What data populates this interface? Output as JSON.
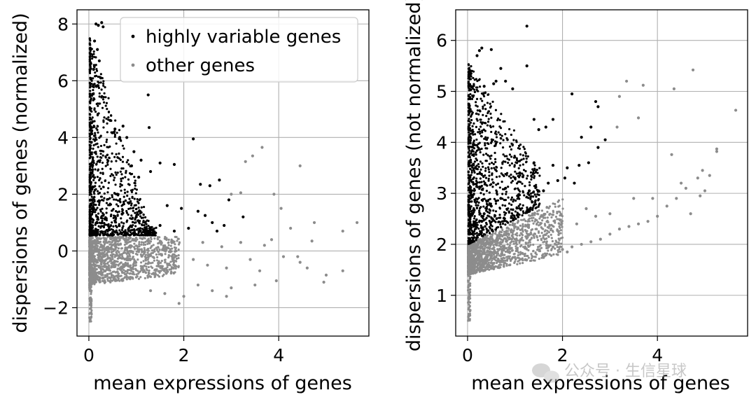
{
  "chart_data": [
    {
      "type": "scatter",
      "title": "",
      "xlabel": "mean expressions of genes",
      "ylabel": "dispersions of genes (normalized)",
      "xlim": [
        -0.25,
        5.9
      ],
      "ylim": [
        -3.0,
        8.5
      ],
      "xticks": [
        0,
        2,
        4
      ],
      "yticks": [
        -2,
        0,
        2,
        4,
        6,
        8
      ],
      "grid": true,
      "legend": {
        "placement": "top-right",
        "entries": [
          "highly variable genes",
          "other genes"
        ]
      },
      "series": [
        {
          "name": "highly variable genes",
          "color": "#000000",
          "points": [
            [
              0.15,
              8.0
            ],
            [
              0.2,
              7.95
            ],
            [
              0.27,
              8.05
            ],
            [
              0.3,
              7.9
            ],
            [
              0.12,
              7.4
            ],
            [
              0.18,
              7.1
            ],
            [
              0.22,
              6.7
            ],
            [
              0.1,
              6.4
            ],
            [
              0.25,
              6.1
            ],
            [
              0.16,
              5.8
            ],
            [
              1.25,
              5.5
            ],
            [
              0.45,
              4.6
            ],
            [
              1.27,
              4.35
            ],
            [
              0.72,
              4.4
            ],
            [
              0.55,
              4.3
            ],
            [
              0.65,
              4.0
            ],
            [
              0.8,
              4.0
            ],
            [
              2.2,
              3.95
            ],
            [
              0.95,
              3.5
            ],
            [
              1.1,
              3.2
            ],
            [
              1.5,
              3.1
            ],
            [
              1.8,
              3.05
            ],
            [
              0.9,
              3.0
            ],
            [
              1.3,
              2.8
            ],
            [
              1.05,
              2.6
            ],
            [
              2.35,
              2.35
            ],
            [
              2.55,
              2.3
            ],
            [
              2.75,
              2.5
            ],
            [
              2.95,
              1.8
            ],
            [
              1.65,
              1.6
            ],
            [
              1.95,
              1.5
            ],
            [
              2.3,
              1.4
            ],
            [
              2.45,
              1.25
            ],
            [
              2.85,
              0.9
            ],
            [
              2.6,
              1.0
            ],
            [
              2.1,
              0.8
            ],
            [
              1.8,
              0.7
            ],
            [
              1.5,
              0.9
            ],
            [
              1.2,
              0.8
            ],
            [
              1.35,
              0.6
            ],
            [
              3.25,
              1.2
            ],
            [
              2.7,
              0.7
            ],
            [
              1.0,
              1.2
            ],
            [
              0.6,
              2.0
            ],
            [
              0.7,
              1.3
            ],
            [
              0.85,
              1.7
            ]
          ]
        },
        {
          "name": "other genes",
          "color": "#8c8c8c",
          "points": [
            [
              3.65,
              3.65
            ],
            [
              3.45,
              3.35
            ],
            [
              3.3,
              3.15
            ],
            [
              4.45,
              3.0
            ],
            [
              3.0,
              2.0
            ],
            [
              3.2,
              2.05
            ],
            [
              3.9,
              2.0
            ],
            [
              4.05,
              1.5
            ],
            [
              4.25,
              0.8
            ],
            [
              3.85,
              0.4
            ],
            [
              4.75,
              1.0
            ],
            [
              4.7,
              0.35
            ],
            [
              5.35,
              0.7
            ],
            [
              5.65,
              1.0
            ],
            [
              4.1,
              -0.2
            ],
            [
              4.45,
              -0.4
            ],
            [
              4.6,
              -0.6
            ],
            [
              5.0,
              -0.85
            ],
            [
              5.35,
              -0.7
            ],
            [
              4.95,
              -1.1
            ],
            [
              3.95,
              -1.05
            ],
            [
              3.5,
              -1.2
            ],
            [
              3.0,
              -1.3
            ],
            [
              2.9,
              -1.6
            ],
            [
              2.6,
              -1.4
            ],
            [
              2.3,
              -1.2
            ],
            [
              2.0,
              -1.6
            ],
            [
              1.9,
              -1.85
            ],
            [
              1.6,
              -1.5
            ],
            [
              1.3,
              -1.4
            ],
            [
              4.4,
              -0.2
            ],
            [
              3.7,
              0.2
            ],
            [
              3.2,
              0.3
            ],
            [
              2.8,
              0.15
            ],
            [
              2.4,
              0.3
            ],
            [
              2.2,
              -0.3
            ],
            [
              2.5,
              -0.5
            ],
            [
              2.9,
              -0.6
            ],
            [
              3.4,
              -0.3
            ],
            [
              3.6,
              -0.7
            ]
          ]
        }
      ]
    },
    {
      "type": "scatter",
      "title": "",
      "xlabel": "mean expressions of genes",
      "ylabel": "dispersions of genes (not normalized)",
      "xlim": [
        -0.25,
        5.9
      ],
      "ylim": [
        0.2,
        6.6
      ],
      "xticks": [
        0,
        2,
        4
      ],
      "yticks": [
        1,
        2,
        3,
        4,
        5,
        6
      ],
      "grid": true,
      "series": [
        {
          "name": "highly variable genes",
          "color": "#000000",
          "points": [
            [
              1.25,
              6.28
            ],
            [
              0.25,
              5.8
            ],
            [
              0.3,
              5.85
            ],
            [
              0.5,
              5.82
            ],
            [
              0.2,
              5.7
            ],
            [
              1.25,
              5.5
            ],
            [
              0.7,
              5.45
            ],
            [
              0.8,
              5.2
            ],
            [
              0.55,
              5.15
            ],
            [
              0.6,
              5.2
            ],
            [
              0.95,
              5.05
            ],
            [
              0.35,
              5.1
            ],
            [
              2.2,
              4.95
            ],
            [
              2.7,
              4.8
            ],
            [
              2.75,
              4.7
            ],
            [
              1.8,
              4.45
            ],
            [
              1.4,
              4.45
            ],
            [
              1.65,
              4.3
            ],
            [
              2.6,
              4.3
            ],
            [
              1.5,
              4.25
            ],
            [
              2.4,
              4.1
            ],
            [
              2.9,
              4.05
            ],
            [
              2.75,
              3.9
            ],
            [
              2.1,
              3.5
            ],
            [
              2.35,
              3.55
            ],
            [
              2.55,
              3.6
            ],
            [
              2.05,
              3.3
            ],
            [
              1.9,
              3.25
            ],
            [
              1.7,
              3.2
            ],
            [
              2.25,
              3.2
            ],
            [
              1.8,
              3.55
            ],
            [
              1.4,
              3.6
            ],
            [
              1.1,
              3.4
            ],
            [
              1.0,
              3.3
            ],
            [
              0.8,
              3.1
            ],
            [
              0.7,
              2.9
            ],
            [
              0.6,
              2.85
            ],
            [
              0.5,
              2.75
            ],
            [
              0.4,
              2.7
            ],
            [
              0.35,
              2.6
            ],
            [
              0.3,
              2.55
            ],
            [
              0.3,
              2.45
            ],
            [
              1.6,
              3.05
            ],
            [
              1.3,
              3.05
            ]
          ]
        },
        {
          "name": "other genes",
          "color": "#8c8c8c",
          "points": [
            [
              4.75,
              5.42
            ],
            [
              3.35,
              5.2
            ],
            [
              3.7,
              5.12
            ],
            [
              4.35,
              5.05
            ],
            [
              3.2,
              4.9
            ],
            [
              3.6,
              4.48
            ],
            [
              3.15,
              4.3
            ],
            [
              5.25,
              3.87
            ],
            [
              5.25,
              3.82
            ],
            [
              5.65,
              4.63
            ],
            [
              4.3,
              3.76
            ],
            [
              4.95,
              3.45
            ],
            [
              5.1,
              3.35
            ],
            [
              4.85,
              3.3
            ],
            [
              4.6,
              3.1
            ],
            [
              4.4,
              2.9
            ],
            [
              4.2,
              2.75
            ],
            [
              4.0,
              2.55
            ],
            [
              3.8,
              2.45
            ],
            [
              3.6,
              2.4
            ],
            [
              3.4,
              2.35
            ],
            [
              3.2,
              2.3
            ],
            [
              3.0,
              2.2
            ],
            [
              2.8,
              2.1
            ],
            [
              2.6,
              2.05
            ],
            [
              2.4,
              2.0
            ],
            [
              2.2,
              1.95
            ],
            [
              2.0,
              1.9
            ],
            [
              1.8,
              1.95
            ],
            [
              2.1,
              1.85
            ],
            [
              3.9,
              2.9
            ],
            [
              3.5,
              2.9
            ],
            [
              3.0,
              2.6
            ],
            [
              2.7,
              2.55
            ],
            [
              2.5,
              2.7
            ],
            [
              2.3,
              2.4
            ],
            [
              4.5,
              3.2
            ],
            [
              4.9,
              2.95
            ],
            [
              5.0,
              3.05
            ],
            [
              4.7,
              2.6
            ]
          ]
        }
      ]
    }
  ],
  "watermark": "公众号 · 生信星球"
}
